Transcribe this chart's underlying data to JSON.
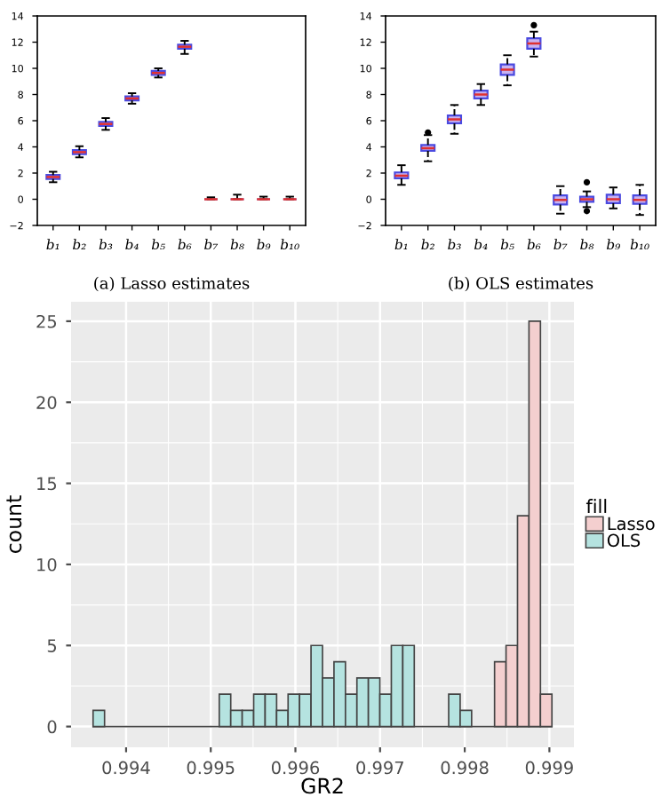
{
  "chart_data": [
    {
      "type": "box",
      "xlabel": "(a) Lasso estimates",
      "categories": [
        "b₁",
        "b₂",
        "b₃",
        "b₄",
        "b₅",
        "b₆",
        "b₇",
        "b₈",
        "b₉",
        "b₁₀"
      ],
      "ylim": [
        -2,
        14
      ],
      "yticks": [
        {
          "value": -2,
          "label": "−2"
        },
        0,
        2,
        4,
        6,
        8,
        10,
        12,
        14
      ],
      "grid": false,
      "series": [
        {
          "color": "#4a4ae0",
          "boxes": [
            {
              "low": 1.3,
              "q1": 1.55,
              "median": 1.7,
              "q3": 1.85,
              "high": 2.1
            },
            {
              "low": 3.2,
              "q1": 3.45,
              "median": 3.6,
              "q3": 3.75,
              "high": 4.05
            },
            {
              "low": 5.3,
              "q1": 5.6,
              "median": 5.75,
              "q3": 5.9,
              "high": 6.2
            },
            {
              "low": 7.3,
              "q1": 7.55,
              "median": 7.7,
              "q3": 7.85,
              "high": 8.1
            },
            {
              "low": 9.3,
              "q1": 9.5,
              "median": 9.65,
              "q3": 9.8,
              "high": 10.0
            },
            {
              "low": 11.1,
              "q1": 11.5,
              "median": 11.65,
              "q3": 11.8,
              "high": 12.1
            },
            {
              "low": 0,
              "q1": 0,
              "median": 0,
              "q3": 0,
              "high": 0.15
            },
            {
              "low": 0,
              "q1": 0,
              "median": 0,
              "q3": 0,
              "high": 0.35
            },
            {
              "low": 0,
              "q1": 0,
              "median": 0,
              "q3": 0,
              "high": 0.2
            },
            {
              "low": 0,
              "q1": 0,
              "median": 0,
              "q3": 0,
              "high": 0.2
            }
          ]
        }
      ]
    },
    {
      "type": "box",
      "xlabel": "(b) OLS estimates",
      "categories": [
        "b₁",
        "b₂",
        "b₃",
        "b₄",
        "b₅",
        "b₆",
        "b₇",
        "b₈",
        "b₉",
        "b₁₀"
      ],
      "ylim": [
        -2,
        14
      ],
      "yticks": [
        {
          "value": -2,
          "label": "−2"
        },
        0,
        2,
        4,
        6,
        8,
        10,
        12,
        14
      ],
      "grid": false,
      "series": [
        {
          "color": "#4a4ae0",
          "boxes": [
            {
              "low": 1.1,
              "q1": 1.6,
              "median": 1.8,
              "q3": 2.05,
              "high": 2.6
            },
            {
              "low": 2.9,
              "q1": 3.7,
              "median": 3.9,
              "q3": 4.15,
              "high": 4.9,
              "outliers": [
                5.1
              ]
            },
            {
              "low": 5.0,
              "q1": 5.8,
              "median": 6.1,
              "q3": 6.4,
              "high": 7.2
            },
            {
              "low": 7.2,
              "q1": 7.7,
              "median": 8.0,
              "q3": 8.3,
              "high": 8.8
            },
            {
              "low": 8.7,
              "q1": 9.5,
              "median": 9.9,
              "q3": 10.3,
              "high": 11.0
            },
            {
              "low": 10.9,
              "q1": 11.5,
              "median": 11.9,
              "q3": 12.3,
              "high": 12.8,
              "outliers": [
                13.3
              ]
            },
            {
              "low": -1.1,
              "q1": -0.4,
              "median": -0.05,
              "q3": 0.3,
              "high": 1.0
            },
            {
              "low": -0.6,
              "q1": -0.2,
              "median": 0.0,
              "q3": 0.2,
              "high": 0.6,
              "outliers": [
                1.3,
                -0.9
              ]
            },
            {
              "low": -0.7,
              "q1": -0.3,
              "median": 0.0,
              "q3": 0.35,
              "high": 0.9
            },
            {
              "low": -1.2,
              "q1": -0.35,
              "median": -0.05,
              "q3": 0.3,
              "high": 1.1
            }
          ]
        }
      ]
    },
    {
      "type": "histogram",
      "xlabel": "GR2",
      "ylabel": "count",
      "legend_title": "fill",
      "legend": "right",
      "grid": true,
      "xlim": [
        0.99335,
        0.99929
      ],
      "xticks": [
        0.994,
        0.995,
        0.996,
        0.997,
        0.998,
        0.999
      ],
      "ylim": [
        -1.28,
        26.2
      ],
      "yticks": [
        0,
        5,
        10,
        15,
        20,
        25
      ],
      "bins": [
        0.99361,
        0.9937455,
        0.993881,
        0.9940165,
        0.994152,
        0.9942875,
        0.994423,
        0.9945585,
        0.994694,
        0.9948295,
        0.994965,
        0.9951005,
        0.995236,
        0.9953715,
        0.995507,
        0.9956425,
        0.995778,
        0.9959135,
        0.996049,
        0.9961845,
        0.99632,
        0.9964555,
        0.996591,
        0.9967265,
        0.996862,
        0.9969975,
        0.997133,
        0.9972685,
        0.997404,
        0.9975395,
        0.997675,
        0.9978105,
        0.997946,
        0.9980815,
        0.998217,
        0.9983525,
        0.998488,
        0.9986235,
        0.998759,
        0.9988945,
        0.99903
      ],
      "series": [
        {
          "name": "Lasso",
          "color": "#f4cfcf",
          "values": [
            0,
            0,
            0,
            0,
            0,
            0,
            0,
            0,
            0,
            0,
            0,
            0,
            0,
            0,
            0,
            0,
            0,
            0,
            0,
            0,
            0,
            0,
            0,
            0,
            0,
            0,
            0,
            0,
            0,
            0,
            0,
            0,
            0,
            0,
            0,
            4,
            5,
            13,
            25,
            2
          ]
        },
        {
          "name": "OLS",
          "color": "#b5e3e0",
          "values": [
            1,
            0,
            0,
            0,
            0,
            0,
            0,
            0,
            0,
            0,
            0,
            2,
            1,
            1,
            2,
            2,
            1,
            2,
            2,
            5,
            3,
            4,
            2,
            3,
            3,
            2,
            5,
            5,
            0,
            0,
            0,
            2,
            1,
            0,
            0,
            0,
            0,
            0,
            0,
            0
          ]
        }
      ]
    }
  ]
}
